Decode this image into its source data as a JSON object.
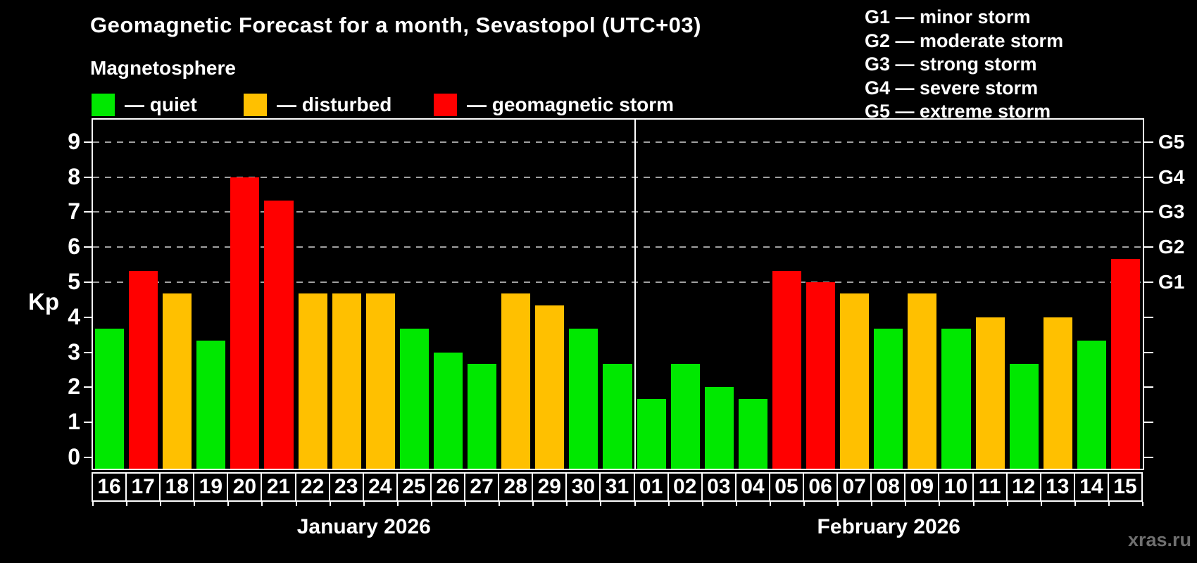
{
  "header": {
    "title": "Geomagnetic Forecast for a month, Sevastopol (UTC+03)",
    "subtitle": "Magnetosphere",
    "legend": [
      {
        "label": "— quiet",
        "level": "quiet",
        "color": "#00e800"
      },
      {
        "label": "— disturbed",
        "level": "disturbed",
        "color": "#ffc000"
      },
      {
        "label": "— geomagnetic storm",
        "level": "storm",
        "color": "#ff0000"
      }
    ],
    "g_scale_legend": [
      "G1 — minor storm",
      "G2 — moderate storm",
      "G3 — strong storm",
      "G4 — severe storm",
      "G5 — extreme storm"
    ]
  },
  "watermark": "xras.ru",
  "chart_data": {
    "type": "bar",
    "title": "Geomagnetic Forecast for a month, Sevastopol (UTC+03)",
    "ylabel": "Kp",
    "ylim": [
      -0.36,
      9.64
    ],
    "yticks": [
      0,
      1,
      2,
      3,
      4,
      5,
      6,
      7,
      8,
      9
    ],
    "grid_levels": [
      5,
      6,
      7,
      8,
      9
    ],
    "grid_on": true,
    "legend_position": "top-left",
    "right_axis": [
      {
        "value": 5,
        "label": "G1"
      },
      {
        "value": 6,
        "label": "G2"
      },
      {
        "value": 7,
        "label": "G3"
      },
      {
        "value": 8,
        "label": "G4"
      },
      {
        "value": 9,
        "label": "G5"
      }
    ],
    "level_colors": {
      "quiet": "#00e800",
      "disturbed": "#ffc000",
      "storm": "#ff0000"
    },
    "groups": [
      {
        "month_label": "January 2026",
        "days": [
          "16",
          "17",
          "18",
          "19",
          "20",
          "21",
          "22",
          "23",
          "24",
          "25",
          "26",
          "27",
          "28",
          "29",
          "30",
          "31"
        ],
        "values": [
          3.67,
          5.33,
          4.67,
          3.33,
          8.0,
          7.33,
          4.67,
          4.67,
          4.67,
          3.67,
          3.0,
          2.67,
          4.67,
          4.33,
          3.67,
          2.67
        ],
        "levels": [
          "quiet",
          "storm",
          "disturbed",
          "quiet",
          "storm",
          "storm",
          "disturbed",
          "disturbed",
          "disturbed",
          "quiet",
          "quiet",
          "quiet",
          "disturbed",
          "disturbed",
          "quiet",
          "quiet"
        ]
      },
      {
        "month_label": "February 2026",
        "days": [
          "01",
          "02",
          "03",
          "04",
          "05",
          "06",
          "07",
          "08",
          "09",
          "10",
          "11",
          "12",
          "13",
          "14",
          "15"
        ],
        "values": [
          1.67,
          2.67,
          2.0,
          1.67,
          5.33,
          5.0,
          4.67,
          3.67,
          4.67,
          3.67,
          4.0,
          2.67,
          4.0,
          3.33,
          5.67
        ],
        "levels": [
          "quiet",
          "quiet",
          "quiet",
          "quiet",
          "storm",
          "storm",
          "disturbed",
          "quiet",
          "disturbed",
          "quiet",
          "disturbed",
          "quiet",
          "disturbed",
          "quiet",
          "storm"
        ]
      }
    ]
  }
}
